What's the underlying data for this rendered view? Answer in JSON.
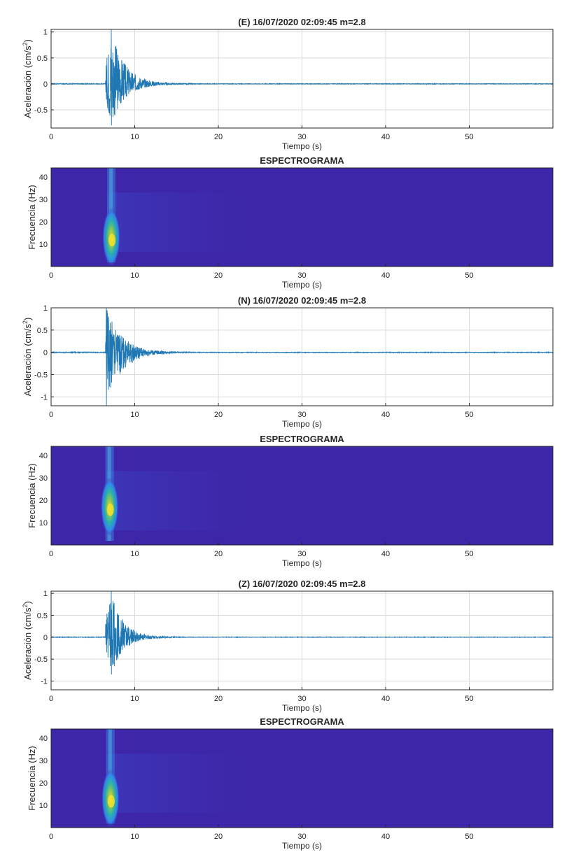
{
  "colors": {
    "trace": "#1f77b4",
    "spec_bg": "#3e26a8",
    "grid": "#d9d9d9",
    "axis": "#262626"
  },
  "panels": [
    {
      "type": "line",
      "title": "(E) 16/07/2020 02:09:45 m=2.8",
      "xlabel": "Tiempo (s)",
      "ylabel": "Aceleración (cm/s",
      "ylabel_sup": "2",
      "ylabel_close": ")",
      "xlim": [
        0,
        60
      ],
      "ylim": [
        -0.85,
        1.05
      ],
      "xticks": [
        "0",
        "10",
        "20",
        "30",
        "40",
        "50"
      ],
      "yticks": [
        "1",
        "0.5",
        "0",
        "-0.5"
      ],
      "ytick_values": [
        1,
        0.5,
        0,
        -0.5
      ],
      "grid": true,
      "onset_s": 6.5,
      "peak_s": 7.2,
      "peak_max": 1.05,
      "peak_min": -0.8,
      "decay_s": 1.6
    },
    {
      "type": "heatmap",
      "title": "ESPECTROGRAMA",
      "xlabel": "Tiempo (s)",
      "ylabel": "Frecuencia (Hz)",
      "xlim": [
        0,
        60
      ],
      "ylim": [
        0,
        44
      ],
      "xticks": [
        "0",
        "10",
        "20",
        "30",
        "40",
        "50"
      ],
      "yticks": [
        "40",
        "30",
        "20",
        "10"
      ],
      "ytick_values": [
        40,
        30,
        20,
        10
      ],
      "hotspot_s": 7.2,
      "hotspot_hz": 13
    },
    {
      "type": "line",
      "title": "(N) 16/07/2020 02:09:45 m=2.8",
      "xlabel": "Tiempo (s)",
      "ylabel": "Aceleración (cm/s",
      "ylabel_sup": "2",
      "ylabel_close": ")",
      "xlim": [
        0,
        60
      ],
      "ylim": [
        -1.2,
        1.0
      ],
      "xticks": [
        "0",
        "10",
        "20",
        "30",
        "40",
        "50"
      ],
      "yticks": [
        "1",
        "0.5",
        "0",
        "-0.5",
        "-1"
      ],
      "ytick_values": [
        1,
        0.5,
        0,
        -0.5,
        -1
      ],
      "grid": true,
      "onset_s": 6.5,
      "peak_s": 6.6,
      "peak_max": 1.0,
      "peak_min": -1.2,
      "decay_s": 1.8
    },
    {
      "type": "heatmap",
      "title": "ESPECTROGRAMA",
      "xlabel": "Tiempo (s)",
      "ylabel": "Frecuencia (Hz)",
      "xlim": [
        0,
        60
      ],
      "ylim": [
        0,
        44
      ],
      "xticks": [
        "0",
        "10",
        "20",
        "30",
        "40",
        "50"
      ],
      "yticks": [
        "40",
        "30",
        "20",
        "10"
      ],
      "ytick_values": [
        40,
        30,
        20,
        10
      ],
      "hotspot_s": 7.0,
      "hotspot_hz": 17
    },
    {
      "type": "line",
      "title": "(Z) 16/07/2020 02:09:45 m=2.8",
      "xlabel": "Tiempo (s)",
      "ylabel": "Aceleración (cm/s",
      "ylabel_sup": "2",
      "ylabel_close": ")",
      "xlim": [
        0,
        60
      ],
      "ylim": [
        -1.2,
        1.05
      ],
      "xticks": [
        "0",
        "10",
        "20",
        "30",
        "40",
        "50"
      ],
      "yticks": [
        "1",
        "0.5",
        "0",
        "-0.5",
        "-1"
      ],
      "ytick_values": [
        1,
        0.5,
        0,
        -0.5,
        -1
      ],
      "grid": true,
      "onset_s": 6.5,
      "peak_s": 7.2,
      "peak_max": 1.05,
      "peak_min": -0.85,
      "decay_s": 1.4
    },
    {
      "type": "heatmap",
      "title": "ESPECTROGRAMA",
      "xlabel": "Tiempo (s)",
      "ylabel": "Frecuencia (Hz)",
      "xlim": [
        0,
        60
      ],
      "ylim": [
        0,
        44
      ],
      "xticks": [
        "0",
        "10",
        "20",
        "30",
        "40",
        "50"
      ],
      "yticks": [
        "40",
        "30",
        "20",
        "10"
      ],
      "ytick_values": [
        40,
        30,
        20,
        10
      ],
      "hotspot_s": 7.1,
      "hotspot_hz": 13
    }
  ]
}
